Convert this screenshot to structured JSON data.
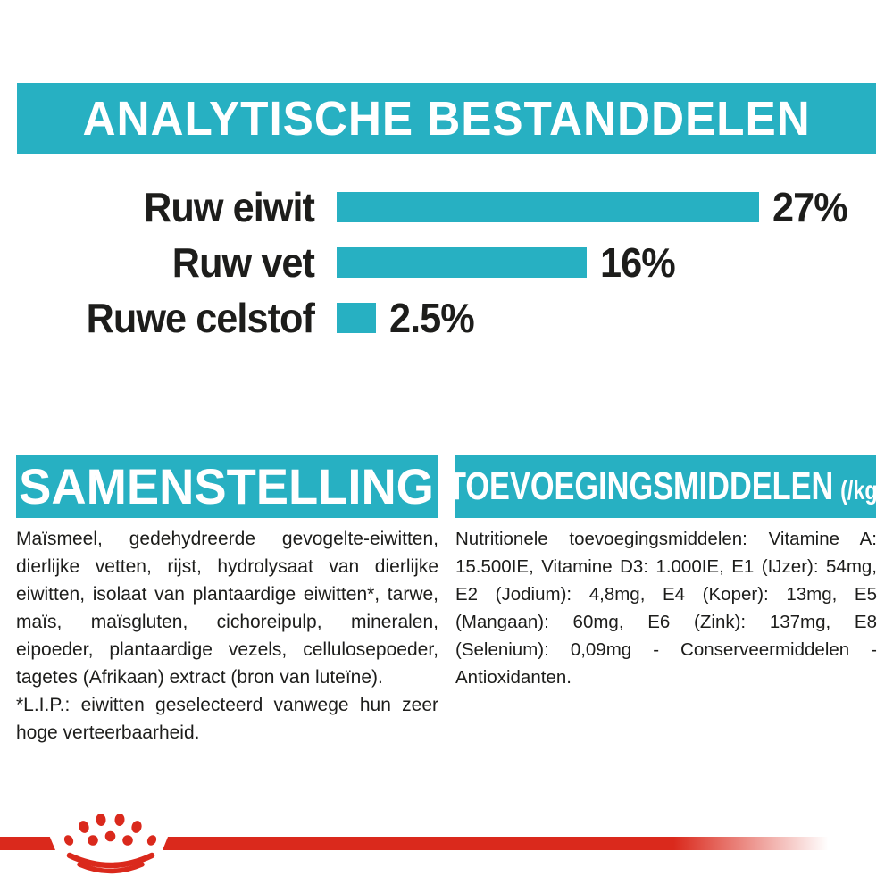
{
  "colors": {
    "teal": "#27b0c2",
    "red": "#da291c",
    "text": "#1d1d1b",
    "white": "#ffffff"
  },
  "analytical": {
    "title": "ANALYTISCHE BESTANDDELEN",
    "chart_data": {
      "type": "bar",
      "orientation": "horizontal",
      "categories": [
        "Ruw eiwit",
        "Ruw vet",
        "Ruwe celstof"
      ],
      "values": [
        27,
        16,
        2.5
      ],
      "value_labels": [
        "27%",
        "16%",
        "2.5%"
      ],
      "xlim": [
        0,
        28
      ],
      "bar_color": "#27b0c2",
      "grid": false,
      "legend": false,
      "title": "ANALYTISCHE BESTANDDELEN",
      "xlabel": "",
      "ylabel": ""
    }
  },
  "composition": {
    "title": "SAMENSTELLING",
    "text": "Maïsmeel, gedehydreerde gevogelte-eiwitten, dierlijke vetten, rijst, hydrolysaat van dierlijke eiwitten, isolaat van plantaardige eiwitten*, tarwe, maïs, maïsgluten, cichoreipulp, mineralen, eipoeder, plantaardige vezels, cellulosepoeder, tagetes (Afrikaan) extract (bron van luteïne).",
    "note": "*L.I.P.: eiwitten geselecteerd vanwege hun zeer hoge verteerbaarheid."
  },
  "additives": {
    "title": "TOEVOEGINGSMIDDELEN",
    "unit": "(/kg)",
    "text": "Nutritionele toevoegingsmiddelen: Vitamine A: 15.500IE, Vitamine D3: 1.000IE, E1 (IJzer): 54mg, E2 (Jodium): 4,8mg, E4 (Koper): 13mg, E5 (Mangaan): 60mg, E6 (Zink): 137mg, E8 (Selenium): 0,09mg - Conserveermiddelen - Antioxidanten."
  },
  "footer": {
    "brand_logo": "royal-canin-crown-paw"
  }
}
